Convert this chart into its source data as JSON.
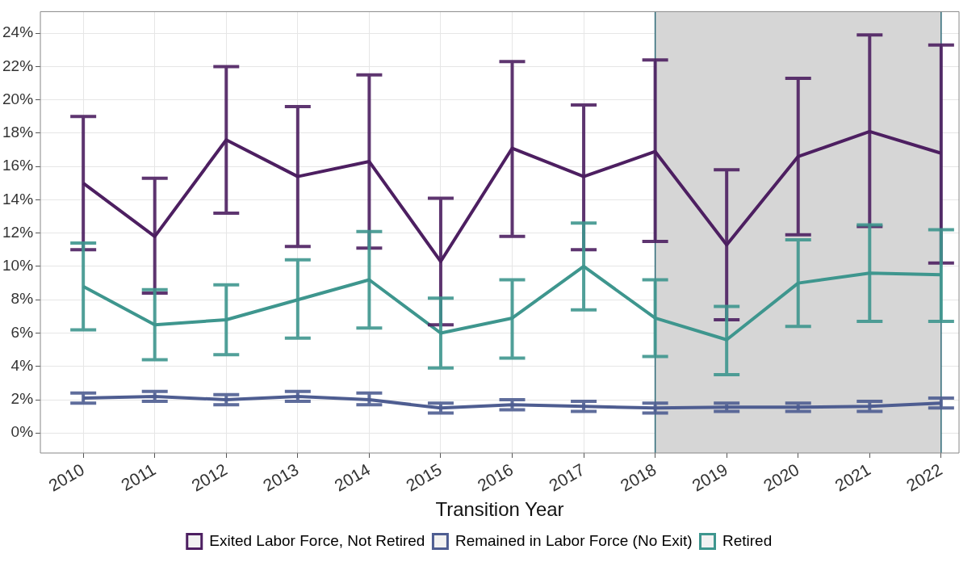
{
  "chart_data": {
    "type": "line",
    "xlabel": "Transition Year",
    "x": [
      2010,
      2011,
      2012,
      2013,
      2014,
      2015,
      2016,
      2017,
      2018,
      2019,
      2020,
      2021,
      2022
    ],
    "xlim": [
      2009.4,
      2022.25
    ],
    "xticks": [
      2010,
      2011,
      2012,
      2013,
      2014,
      2015,
      2016,
      2017,
      2018,
      2019,
      2020,
      2021,
      2022
    ],
    "ylim": [
      -1.2,
      25.3
    ],
    "yticks": [
      {
        "value": 0,
        "label": "0%"
      },
      {
        "value": 2,
        "label": "2%"
      },
      {
        "value": 4,
        "label": "4%"
      },
      {
        "value": 6,
        "label": "6%"
      },
      {
        "value": 8,
        "label": "8%"
      },
      {
        "value": 10,
        "label": "10%"
      },
      {
        "value": 12,
        "label": "12%"
      },
      {
        "value": 14,
        "label": "14%"
      },
      {
        "value": 16,
        "label": "16%"
      },
      {
        "value": 18,
        "label": "18%"
      },
      {
        "value": 20,
        "label": "20%"
      },
      {
        "value": 22,
        "label": "22%"
      },
      {
        "value": 24,
        "label": "24%"
      }
    ],
    "grid": true,
    "legend": "bottom",
    "marker": "none",
    "line_style": "solid",
    "bands": [
      {
        "axis": "x",
        "from": 2018,
        "to": 2022,
        "color": "#d6d6d6"
      }
    ],
    "series": [
      {
        "name": "Exited Labor Force, Not Retired",
        "color": "#4d1f61",
        "values": [
          15.0,
          11.8,
          17.6,
          15.4,
          16.3,
          10.3,
          17.1,
          15.4,
          16.9,
          11.3,
          16.6,
          18.1,
          16.8
        ],
        "errors": [
          [
            11.0,
            19.0
          ],
          [
            8.4,
            15.3
          ],
          [
            13.2,
            22.0
          ],
          [
            11.2,
            19.6
          ],
          [
            11.1,
            21.5
          ],
          [
            6.5,
            14.1
          ],
          [
            11.8,
            22.3
          ],
          [
            11.0,
            19.7
          ],
          [
            11.5,
            22.4
          ],
          [
            6.8,
            15.8
          ],
          [
            11.9,
            21.3
          ],
          [
            12.4,
            23.9
          ],
          [
            10.2,
            23.3
          ]
        ]
      },
      {
        "name": "Remained in Labor Force (No Exit)",
        "color": "#4e5d91",
        "values": [
          2.1,
          2.2,
          2.0,
          2.2,
          2.0,
          1.5,
          1.7,
          1.6,
          1.5,
          1.55,
          1.55,
          1.6,
          1.8
        ],
        "errors": [
          [
            1.8,
            2.4
          ],
          [
            1.9,
            2.5
          ],
          [
            1.7,
            2.3
          ],
          [
            1.9,
            2.5
          ],
          [
            1.7,
            2.4
          ],
          [
            1.2,
            1.8
          ],
          [
            1.4,
            2.0
          ],
          [
            1.3,
            1.9
          ],
          [
            1.2,
            1.8
          ],
          [
            1.3,
            1.8
          ],
          [
            1.3,
            1.8
          ],
          [
            1.3,
            1.9
          ],
          [
            1.5,
            2.1
          ]
        ]
      },
      {
        "name": "Retired",
        "color": "#3e968e",
        "values": [
          8.8,
          6.5,
          6.8,
          8.0,
          9.2,
          6.0,
          6.9,
          10.0,
          6.9,
          5.6,
          9.0,
          9.6,
          9.5
        ],
        "errors": [
          [
            6.2,
            11.4
          ],
          [
            4.4,
            8.6
          ],
          [
            4.7,
            8.9
          ],
          [
            5.7,
            10.4
          ],
          [
            6.3,
            12.1
          ],
          [
            3.9,
            8.1
          ],
          [
            4.5,
            9.2
          ],
          [
            7.4,
            12.6
          ],
          [
            4.6,
            9.2
          ],
          [
            3.5,
            7.6
          ],
          [
            6.4,
            11.6
          ],
          [
            6.7,
            12.5
          ],
          [
            6.7,
            12.2
          ]
        ]
      }
    ]
  }
}
